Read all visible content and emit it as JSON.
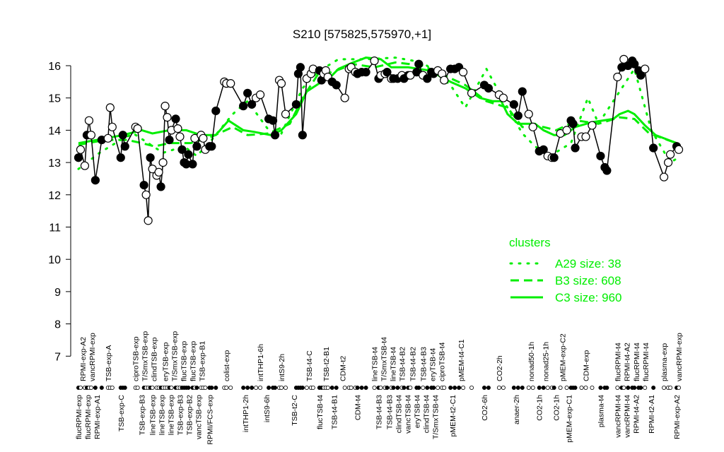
{
  "chart_data": {
    "type": "line",
    "title": "S210 [575825,575970,+1]",
    "xlabel": "",
    "ylabel": "",
    "ylim": [
      7,
      16
    ],
    "xlim": [
      -1,
      290
    ],
    "yticks": [
      7,
      8,
      9,
      10,
      11,
      12,
      13,
      14,
      15,
      16
    ],
    "grid": false,
    "colors": {
      "points": "#000000",
      "clusters": "#00ee00"
    },
    "points": [
      [
        2,
        13.15,
        1
      ],
      [
        3,
        13.4,
        0
      ],
      [
        5,
        12.9,
        0
      ],
      [
        6,
        13.85,
        1
      ],
      [
        7,
        14.3,
        0
      ],
      [
        8,
        13.85,
        0
      ],
      [
        10,
        12.45,
        1
      ],
      [
        13,
        13.7,
        1
      ],
      [
        16,
        13.75,
        0
      ],
      [
        17,
        14.7,
        0
      ],
      [
        18,
        14.1,
        0
      ],
      [
        22,
        13.15,
        1
      ],
      [
        23,
        13.85,
        1
      ],
      [
        24,
        13.5,
        1
      ],
      [
        29,
        14.1,
        0
      ],
      [
        30,
        14.05,
        0
      ],
      [
        33,
        12.3,
        1
      ],
      [
        34,
        12.0,
        0
      ],
      [
        35,
        11.2,
        0
      ],
      [
        36,
        13.15,
        1
      ],
      [
        37,
        12.8,
        0
      ],
      [
        39,
        12.6,
        0
      ],
      [
        40,
        12.7,
        0
      ],
      [
        41,
        12.25,
        1
      ],
      [
        42,
        13.0,
        0
      ],
      [
        43,
        14.75,
        0
      ],
      [
        44,
        14.4,
        0
      ],
      [
        45,
        13.7,
        1
      ],
      [
        46,
        14.0,
        0
      ],
      [
        48,
        14.35,
        1
      ],
      [
        49,
        14.05,
        0
      ],
      [
        50,
        13.8,
        0
      ],
      [
        51,
        13.4,
        1
      ],
      [
        52,
        13.0,
        1
      ],
      [
        53,
        12.95,
        1
      ],
      [
        54,
        13.25,
        1
      ],
      [
        56,
        12.95,
        1
      ],
      [
        57,
        13.75,
        0
      ],
      [
        58,
        13.5,
        1
      ],
      [
        60,
        13.85,
        0
      ],
      [
        61,
        13.75,
        0
      ],
      [
        62,
        13.4,
        0
      ],
      [
        64,
        13.5,
        1
      ],
      [
        65,
        13.5,
        1
      ],
      [
        67,
        14.6,
        1
      ],
      [
        71,
        15.5,
        0
      ],
      [
        72,
        15.45,
        0
      ],
      [
        74,
        15.45,
        0
      ],
      [
        80,
        14.75,
        1
      ],
      [
        82,
        15.15,
        1
      ],
      [
        84,
        14.8,
        1
      ],
      [
        86,
        15.0,
        0
      ],
      [
        88,
        15.1,
        0
      ],
      [
        92,
        14.35,
        1
      ],
      [
        94,
        14.3,
        1
      ],
      [
        95,
        13.85,
        1
      ],
      [
        97,
        15.55,
        0
      ],
      [
        98,
        15.45,
        0
      ],
      [
        100,
        14.5,
        0
      ],
      [
        105,
        14.8,
        1
      ],
      [
        106,
        15.75,
        1
      ],
      [
        107,
        15.95,
        1
      ],
      [
        108,
        13.85,
        1
      ],
      [
        110,
        15.6,
        0
      ],
      [
        112,
        15.75,
        0
      ],
      [
        113,
        15.9,
        0
      ],
      [
        116,
        15.85,
        1
      ],
      [
        117,
        15.55,
        1
      ],
      [
        118,
        15.75,
        0
      ],
      [
        119,
        15.85,
        0
      ],
      [
        120,
        15.65,
        0
      ],
      [
        122,
        15.5,
        1
      ],
      [
        124,
        15.4,
        1
      ],
      [
        128,
        15.0,
        0
      ],
      [
        130,
        15.9,
        0
      ],
      [
        131,
        15.95,
        0
      ],
      [
        133,
        15.8,
        0
      ],
      [
        134,
        15.75,
        1
      ],
      [
        136,
        15.8,
        1
      ],
      [
        138,
        15.8,
        1
      ],
      [
        142,
        16.15,
        0
      ],
      [
        144,
        15.6,
        1
      ],
      [
        145,
        15.7,
        0
      ],
      [
        147,
        15.75,
        0
      ],
      [
        148,
        15.8,
        1
      ],
      [
        150,
        15.6,
        0
      ],
      [
        151,
        15.6,
        1
      ],
      [
        153,
        15.6,
        1
      ],
      [
        155,
        15.7,
        0
      ],
      [
        156,
        15.6,
        1
      ],
      [
        158,
        15.7,
        1
      ],
      [
        159,
        15.7,
        0
      ],
      [
        162,
        15.8,
        1
      ],
      [
        163,
        16.05,
        1
      ],
      [
        165,
        15.7,
        0
      ],
      [
        167,
        15.6,
        1
      ],
      [
        169,
        15.8,
        1
      ],
      [
        170,
        15.75,
        1
      ],
      [
        172,
        15.85,
        0
      ],
      [
        174,
        15.75,
        0
      ],
      [
        175,
        15.55,
        0
      ],
      [
        178,
        15.9,
        1
      ],
      [
        180,
        15.9,
        1
      ],
      [
        182,
        15.95,
        1
      ],
      [
        184,
        15.8,
        0
      ],
      [
        188,
        15.15,
        0
      ],
      [
        194,
        15.4,
        1
      ],
      [
        196,
        15.3,
        1
      ],
      [
        201,
        15.1,
        0
      ],
      [
        203,
        15.0,
        0
      ],
      [
        208,
        14.8,
        1
      ],
      [
        210,
        14.45,
        1
      ],
      [
        212,
        15.2,
        1
      ],
      [
        215,
        14.5,
        0
      ],
      [
        217,
        14.1,
        0
      ],
      [
        220,
        13.35,
        1
      ],
      [
        222,
        13.4,
        1
      ],
      [
        224,
        13.2,
        0
      ],
      [
        226,
        13.15,
        0
      ],
      [
        227,
        13.15,
        1
      ],
      [
        230,
        13.9,
        0
      ],
      [
        233,
        14.0,
        0
      ],
      [
        235,
        14.3,
        1
      ],
      [
        236,
        14.2,
        1
      ],
      [
        237,
        13.45,
        1
      ],
      [
        240,
        13.8,
        0
      ],
      [
        242,
        13.8,
        0
      ],
      [
        245,
        14.15,
        0
      ],
      [
        249,
        13.2,
        1
      ],
      [
        251,
        12.85,
        1
      ],
      [
        252,
        12.75,
        1
      ],
      [
        257,
        15.65,
        0
      ],
      [
        259,
        15.95,
        1
      ],
      [
        260,
        16.2,
        0
      ],
      [
        262,
        16.0,
        1
      ],
      [
        264,
        16.15,
        1
      ],
      [
        265,
        16.05,
        1
      ],
      [
        267,
        15.85,
        1
      ],
      [
        268,
        15.7,
        1
      ],
      [
        270,
        15.9,
        0
      ],
      [
        274,
        13.45,
        1
      ],
      [
        279,
        12.55,
        0
      ],
      [
        281,
        13.0,
        0
      ],
      [
        282,
        13.25,
        0
      ],
      [
        285,
        13.5,
        1
      ],
      [
        286,
        13.4,
        0
      ]
    ],
    "series": [
      {
        "name": "A29 size: 38",
        "style": "dotted",
        "points": [
          [
            2,
            12.8
          ],
          [
            12,
            13.3
          ],
          [
            22,
            13.7
          ],
          [
            28,
            13.9
          ],
          [
            35,
            13.6
          ],
          [
            42,
            13.3
          ],
          [
            52,
            13.5
          ],
          [
            58,
            13.2
          ],
          [
            65,
            13.7
          ],
          [
            75,
            14.5
          ],
          [
            82,
            14.9
          ],
          [
            92,
            14.0
          ],
          [
            98,
            13.9
          ],
          [
            108,
            15.3
          ],
          [
            115,
            15.8
          ],
          [
            125,
            16.2
          ],
          [
            138,
            16.2
          ],
          [
            152,
            16.25
          ],
          [
            165,
            16.1
          ],
          [
            178,
            15.4
          ],
          [
            185,
            14.7
          ],
          [
            195,
            15.9
          ],
          [
            205,
            14.7
          ],
          [
            212,
            13.9
          ],
          [
            218,
            13.5
          ],
          [
            225,
            13.2
          ],
          [
            235,
            13.6
          ],
          [
            243,
            15.0
          ],
          [
            248,
            14.2
          ],
          [
            258,
            15.2
          ],
          [
            265,
            15.9
          ],
          [
            273,
            14.0
          ],
          [
            282,
            13.0
          ],
          [
            287,
            13.2
          ]
        ]
      },
      {
        "name": "B3 size: 608",
        "style": "dashed",
        "points": [
          [
            2,
            13.55
          ],
          [
            15,
            13.7
          ],
          [
            25,
            13.7
          ],
          [
            32,
            13.6
          ],
          [
            38,
            13.5
          ],
          [
            45,
            13.6
          ],
          [
            55,
            13.6
          ],
          [
            65,
            13.8
          ],
          [
            75,
            14.1
          ],
          [
            82,
            13.85
          ],
          [
            92,
            13.9
          ],
          [
            102,
            14.2
          ],
          [
            108,
            15.0
          ],
          [
            115,
            15.7
          ],
          [
            122,
            15.8
          ],
          [
            132,
            16.05
          ],
          [
            142,
            15.95
          ],
          [
            152,
            16.1
          ],
          [
            165,
            16.0
          ],
          [
            175,
            15.7
          ],
          [
            185,
            15.4
          ],
          [
            195,
            14.9
          ],
          [
            205,
            14.7
          ],
          [
            212,
            14.1
          ],
          [
            222,
            14.1
          ],
          [
            228,
            14.0
          ],
          [
            238,
            14.3
          ],
          [
            248,
            14.2
          ],
          [
            258,
            14.4
          ],
          [
            265,
            14.35
          ],
          [
            272,
            13.9
          ],
          [
            285,
            13.6
          ]
        ]
      },
      {
        "name": "C3 size: 960",
        "style": "solid",
        "points": [
          [
            2,
            13.6
          ],
          [
            15,
            13.75
          ],
          [
            23,
            13.85
          ],
          [
            32,
            14.0
          ],
          [
            37,
            13.9
          ],
          [
            45,
            14.0
          ],
          [
            53,
            14.0
          ],
          [
            60,
            13.85
          ],
          [
            67,
            13.85
          ],
          [
            73,
            14.3
          ],
          [
            80,
            14.0
          ],
          [
            85,
            13.95
          ],
          [
            93,
            13.85
          ],
          [
            98,
            14.0
          ],
          [
            105,
            14.5
          ],
          [
            110,
            15.2
          ],
          [
            117,
            15.5
          ],
          [
            122,
            15.7
          ],
          [
            125,
            15.9
          ],
          [
            132,
            16.1
          ],
          [
            138,
            16.25
          ],
          [
            145,
            16.2
          ],
          [
            150,
            15.95
          ],
          [
            158,
            15.95
          ],
          [
            168,
            15.85
          ],
          [
            178,
            15.5
          ],
          [
            185,
            15.3
          ],
          [
            192,
            15.0
          ],
          [
            198,
            14.9
          ],
          [
            202,
            14.9
          ],
          [
            205,
            14.5
          ],
          [
            210,
            14.2
          ],
          [
            218,
            14.2
          ],
          [
            222,
            14.0
          ],
          [
            227,
            13.85
          ],
          [
            232,
            13.85
          ],
          [
            237,
            14.1
          ],
          [
            245,
            14.25
          ],
          [
            255,
            14.35
          ],
          [
            258,
            14.5
          ],
          [
            262,
            14.6
          ],
          [
            265,
            14.5
          ],
          [
            270,
            14.15
          ],
          [
            275,
            13.85
          ],
          [
            285,
            13.6
          ]
        ]
      }
    ],
    "legend": {
      "title": "clusters",
      "placement": "right-middle"
    },
    "top_labels": [
      [
        "RPMI-exp-A2",
        4
      ],
      [
        "vancRPMI-exp",
        7
      ],
      [
        "TSB-exp-A",
        16
      ],
      [
        "ciproTSB-exp",
        29
      ],
      [
        "T/SmxTSB-exp",
        32
      ],
      [
        "clindTSB-exp",
        37
      ],
      [
        "eryTSB-exp",
        43
      ],
      [
        "T/SmxTSB-exp",
        46
      ],
      [
        "flucTSB-exp",
        49
      ],
      [
        "flucTSB-exp",
        54
      ],
      [
        "TSB-exp-B1",
        59
      ],
      [
        "colist-exp",
        72
      ],
      [
        "intTHP1-6h",
        88
      ],
      [
        "intS9-2h",
        98
      ],
      [
        "TSB-t4-C",
        111
      ],
      [
        "TSB-t2-B1",
        119
      ],
      [
        "CDM-t2",
        127
      ],
      [
        "lineTSB-t4",
        142
      ],
      [
        "T/SmxTSB-t4",
        146
      ],
      [
        "lineTSB-t4",
        150
      ],
      [
        "TSB-t4-B2",
        154
      ],
      [
        "TSB-t4-B2",
        160
      ],
      [
        "TSB-t4-B3",
        165
      ],
      [
        "eryTSB-t4",
        168
      ],
      [
        "ciproTSB-t4",
        172
      ],
      [
        "pMEM-t4-C1",
        183
      ],
      [
        "CO2-2h",
        201
      ],
      [
        "nonad50-1h",
        216
      ],
      [
        "nonad25-1h",
        223
      ],
      [
        "pMEM-exp-C2",
        231
      ],
      [
        "CDM-exp",
        242
      ],
      [
        "flucRPMI-t4",
        257
      ],
      [
        "RPMI-t4-A2",
        259
      ],
      [
        "flucRPMI-t4",
        266
      ],
      [
        "flucRPMI-t4",
        270
      ],
      [
        "plasma-exp",
        279
      ],
      [
        "vancRPMI-exp",
        286
      ]
    ],
    "bottom_labels": [
      [
        "flucRPMI-exp",
        2
      ],
      [
        "flucRPMI-exp",
        6
      ],
      [
        "RPMI-exp-A1",
        9
      ],
      [
        "TSB-exp-C",
        22
      ],
      [
        "TSB-exp-B3",
        32
      ],
      [
        "lineTSB-exp",
        37
      ],
      [
        "lineTSB-exp",
        41
      ],
      [
        "lineTSB-exp",
        45
      ],
      [
        "TSB-exp-B3",
        47
      ],
      [
        "TSB-exp-B2",
        51
      ],
      [
        "vancTSB-exp",
        55
      ],
      [
        "RPMI/FCS-exp",
        64
      ],
      [
        "intTHP1-2h",
        81
      ],
      [
        "intS9-6h",
        91
      ],
      [
        "TSB-t2-C",
        104
      ],
      [
        "flucTSB-t4",
        116
      ],
      [
        "TSB-t4-B1",
        123
      ],
      [
        "CDM-t4",
        134
      ],
      [
        "TSB-t4-B3",
        144
      ],
      [
        "TSB-t4-B3",
        149
      ],
      [
        "clindTSB-t4",
        153
      ],
      [
        "vancTSB-t4",
        157
      ],
      [
        "eryTSB-t4",
        161
      ],
      [
        "clindTSB-t4",
        166
      ],
      [
        "T/SmxTSB-t4",
        170
      ],
      [
        "pMEM-t2-C1",
        179
      ],
      [
        "CO2-6h",
        194
      ],
      [
        "anaer-2h",
        209
      ],
      [
        "CO2-1h",
        220
      ],
      [
        "CO2-1h",
        228
      ],
      [
        "pMEM-exp-C1",
        234
      ],
      [
        "plasma-t4",
        249
      ],
      [
        "vancRPMI-t4",
        257
      ],
      [
        "vancRPMI-t4",
        259
      ],
      [
        "RPMI-t4-A2",
        265
      ],
      [
        "RPMI-t2-A1",
        273
      ],
      [
        "RPMI-exp-A2",
        285
      ]
    ]
  }
}
